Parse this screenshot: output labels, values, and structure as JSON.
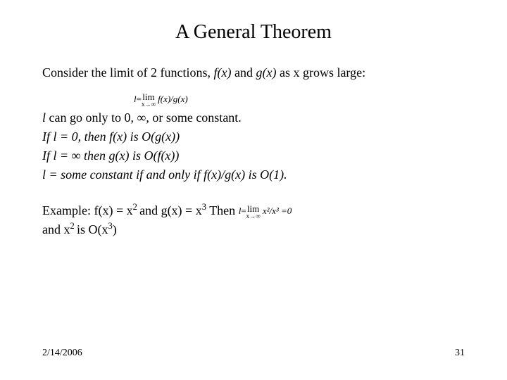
{
  "title": "A General Theorem",
  "para1_prefix": "Consider the limit of 2 functions, ",
  "para1_fx": "f(x)",
  "para1_mid": " and ",
  "para1_gx": "g(x)",
  "para1_suffix": "  as x grows large:",
  "formula1_l": "l",
  "formula1_eq": "=",
  "formula1_lim": "lim",
  "formula1_sub": "x→∞",
  "formula1_expr": " f(x)/g(x)",
  "line_a_l": "l",
  "line_a_rest": " can go only to 0, ∞, or some constant.",
  "line_b": "If l = 0, then  f(x) is O(g(x))",
  "line_c": "If l = ∞ then g(x) is O(f(x))",
  "line_d": "l = some constant if and only if f(x)/g(x) is O(1).",
  "ex_prefix": "Example: f(x) = x",
  "ex_sq1": "2 ",
  "ex_mid": " and g(x) = x",
  "ex_cu1": "3",
  "ex_then": " Then  ",
  "ex_formula_l": "l",
  "ex_formula_eq": "=",
  "ex_formula_lim": "lim",
  "ex_formula_sub": "x→∞",
  "ex_formula_expr": " x²/x³ =0",
  "ex_line2_a": "and x",
  "ex_line2_sq": "2 ",
  "ex_line2_b": " is O(x",
  "ex_line2_cu": "3",
  "ex_line2_c": ")",
  "footer_date": "2/14/2006",
  "footer_page": "31"
}
